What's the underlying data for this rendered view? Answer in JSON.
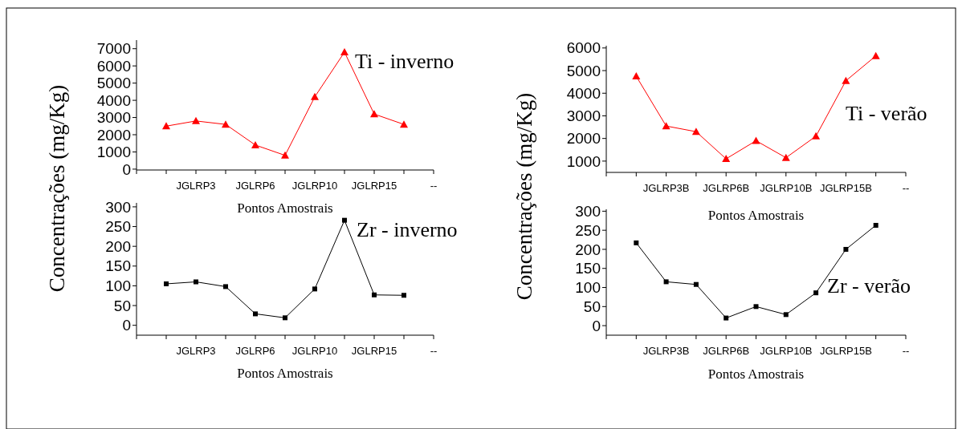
{
  "chart_data": [
    {
      "type": "line",
      "title": "Ti - inverno",
      "xlabel": "Pontos Amostrais",
      "ylabel": "Concentrações (mg/Kg)",
      "categories": [
        null,
        null,
        "JGLRP3",
        null,
        "JGLRP6",
        null,
        "JGLRP10",
        null,
        "JGLRP15",
        null,
        "--"
      ],
      "series": [
        {
          "color": "#ff0000",
          "values": [
            null,
            2500,
            2800,
            2600,
            1400,
            800,
            4200,
            6800,
            3200,
            2600,
            null
          ]
        }
      ],
      "marker": "triangle",
      "ylim": [
        -50,
        7500
      ],
      "yticks": [
        0,
        1000,
        2000,
        3000,
        4000,
        5000,
        6000,
        7000
      ]
    },
    {
      "type": "line",
      "title": "Zr - inverno",
      "xlabel": "Pontos Amostrais",
      "categories": [
        null,
        null,
        "JGLRP3",
        null,
        "JGLRP6",
        null,
        "JGLRP10",
        null,
        "JGLRP15",
        null,
        "--"
      ],
      "series": [
        {
          "color": "#000000",
          "values": [
            null,
            105,
            110,
            98,
            29,
            19,
            92,
            266,
            77,
            76,
            null
          ]
        }
      ],
      "marker": "square",
      "ylim": [
        -25,
        310
      ],
      "yticks": [
        0,
        50,
        100,
        150,
        200,
        250,
        300
      ]
    },
    {
      "type": "line",
      "title": "Ti - verão",
      "xlabel": "Pontos Amostrais",
      "ylabel": "Concentrações (mg/Kg)",
      "categories": [
        null,
        null,
        "JGLRP3B",
        null,
        "JGLRP6B",
        null,
        "JGLRP10B",
        null,
        "JGLRP15B",
        null,
        "--"
      ],
      "series": [
        {
          "color": "#ff0000",
          "values": [
            null,
            4750,
            2550,
            2300,
            1100,
            1900,
            1150,
            2100,
            4550,
            5650,
            null
          ]
        }
      ],
      "marker": "triangle",
      "ylim": [
        500,
        6100
      ],
      "yticks": [
        1000,
        2000,
        3000,
        4000,
        5000,
        6000
      ]
    },
    {
      "type": "line",
      "title": "Zr - verão",
      "xlabel": "Pontos Amostrais",
      "categories": [
        null,
        null,
        "JGLRP3B",
        null,
        "JGLRP6B",
        null,
        "JGLRP10B",
        null,
        "JGLRP15B",
        null,
        "--"
      ],
      "series": [
        {
          "color": "#000000",
          "values": [
            null,
            217,
            115,
            108,
            20,
            50,
            29,
            86,
            200,
            263,
            null
          ]
        }
      ],
      "marker": "square",
      "ylim": [
        -25,
        305
      ],
      "yticks": [
        0,
        50,
        100,
        150,
        200,
        250,
        300
      ]
    }
  ]
}
